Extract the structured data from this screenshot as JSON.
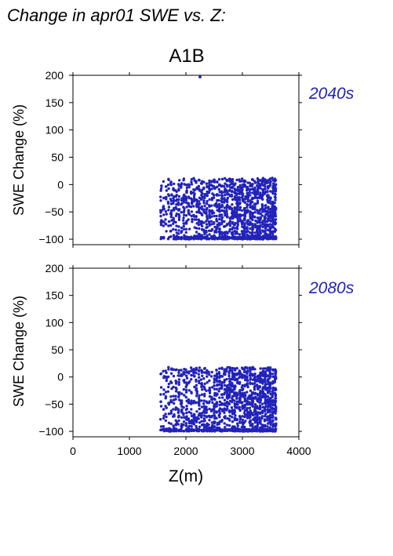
{
  "figure": {
    "title": "Change in apr01 SWE vs. Z:",
    "scenario": "A1B",
    "point_color": "#2222bb"
  },
  "chart_data": [
    {
      "type": "scatter",
      "panel": "2040s",
      "xlabel": "Z(m)",
      "ylabel": "SWE Change (%)",
      "xlim": [
        0,
        4000
      ],
      "ylim": [
        -110,
        200
      ],
      "xticks": [
        0,
        1000,
        2000,
        3000,
        4000
      ],
      "yticks": [
        -100,
        -50,
        0,
        50,
        100,
        150,
        200
      ],
      "x_range_of_points": [
        1560,
        3600
      ],
      "y_range_of_points": [
        -100,
        12
      ],
      "outliers": [
        [
          2250,
          197
        ]
      ],
      "label_color": "#2222bb"
    },
    {
      "type": "scatter",
      "panel": "2080s",
      "xlabel": "Z(m)",
      "ylabel": "SWE Change (%)",
      "xlim": [
        0,
        4000
      ],
      "ylim": [
        -110,
        200
      ],
      "xticks": [
        0,
        1000,
        2000,
        3000,
        4000
      ],
      "yticks": [
        -100,
        -50,
        0,
        50,
        100,
        150,
        200
      ],
      "x_range_of_points": [
        1560,
        3600
      ],
      "y_range_of_points": [
        -100,
        18
      ],
      "outliers": [],
      "label_color": "#2222bb"
    }
  ]
}
